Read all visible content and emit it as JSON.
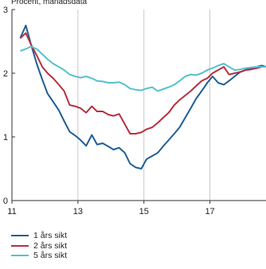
{
  "chart_data": {
    "type": "line",
    "unit_label": "Procent, månadsdata",
    "xlim": [
      11,
      18.7
    ],
    "ylim": [
      0,
      3
    ],
    "x_ticks": [
      11,
      13,
      15,
      17
    ],
    "y_ticks": [
      0,
      1,
      2,
      3
    ],
    "grid": "vertical at x ticks",
    "legend_position": "bottom-left",
    "series": [
      {
        "name": "1 års sikt",
        "color": "#1f5e96",
        "x": [
          11.25,
          11.42,
          11.58,
          11.75,
          11.92,
          12.08,
          12.25,
          12.42,
          12.58,
          12.75,
          12.92,
          13.08,
          13.25,
          13.42,
          13.58,
          13.75,
          13.92,
          14.08,
          14.25,
          14.42,
          14.58,
          14.75,
          14.92,
          15.08,
          15.25,
          15.42,
          15.58,
          15.75,
          15.92,
          16.08,
          16.25,
          16.42,
          16.58,
          16.75,
          16.92,
          17.08,
          17.25,
          17.42,
          17.58,
          17.75,
          17.92,
          18.08,
          18.25,
          18.42,
          18.58,
          18.7
        ],
        "y": [
          2.55,
          2.75,
          2.45,
          2.15,
          1.9,
          1.68,
          1.55,
          1.42,
          1.25,
          1.08,
          1.02,
          0.95,
          0.86,
          1.03,
          0.88,
          0.9,
          0.85,
          0.8,
          0.83,
          0.75,
          0.58,
          0.52,
          0.5,
          0.65,
          0.7,
          0.75,
          0.85,
          0.95,
          1.05,
          1.15,
          1.3,
          1.45,
          1.6,
          1.72,
          1.85,
          1.95,
          1.85,
          1.82,
          1.88,
          1.95,
          2.02,
          2.05,
          2.08,
          2.1,
          2.12,
          2.1
        ]
      },
      {
        "name": "2 års sikt",
        "color": "#b5303f",
        "x": [
          11.25,
          11.42,
          11.58,
          11.75,
          11.92,
          12.08,
          12.25,
          12.42,
          12.58,
          12.75,
          12.92,
          13.08,
          13.25,
          13.42,
          13.58,
          13.75,
          13.92,
          14.08,
          14.25,
          14.42,
          14.58,
          14.75,
          14.92,
          15.08,
          15.25,
          15.42,
          15.58,
          15.75,
          15.92,
          16.08,
          16.25,
          16.42,
          16.58,
          16.75,
          16.92,
          17.08,
          17.25,
          17.42,
          17.58,
          17.75,
          17.92,
          18.08,
          18.25,
          18.42,
          18.58,
          18.7
        ],
        "y": [
          2.55,
          2.63,
          2.45,
          2.28,
          2.1,
          2.0,
          1.92,
          1.82,
          1.72,
          1.5,
          1.48,
          1.45,
          1.38,
          1.48,
          1.4,
          1.4,
          1.35,
          1.33,
          1.36,
          1.2,
          1.05,
          1.05,
          1.07,
          1.12,
          1.15,
          1.22,
          1.3,
          1.38,
          1.5,
          1.58,
          1.65,
          1.72,
          1.8,
          1.88,
          1.92,
          2.0,
          2.05,
          2.1,
          1.98,
          2.0,
          2.02,
          2.05,
          2.06,
          2.08,
          2.1,
          2.1
        ]
      },
      {
        "name": "5 års sikt",
        "color": "#56c0d0",
        "x": [
          11.25,
          11.42,
          11.58,
          11.75,
          11.92,
          12.08,
          12.25,
          12.42,
          12.58,
          12.75,
          12.92,
          13.08,
          13.25,
          13.42,
          13.58,
          13.75,
          13.92,
          14.08,
          14.25,
          14.42,
          14.58,
          14.75,
          14.92,
          15.08,
          15.25,
          15.42,
          15.58,
          15.75,
          15.92,
          16.08,
          16.25,
          16.42,
          16.58,
          16.75,
          16.92,
          17.08,
          17.25,
          17.42,
          17.58,
          17.75,
          17.92,
          18.08,
          18.25,
          18.42,
          18.58,
          18.7
        ],
        "y": [
          2.35,
          2.38,
          2.42,
          2.38,
          2.3,
          2.22,
          2.15,
          2.1,
          2.05,
          1.98,
          1.95,
          1.93,
          1.95,
          1.92,
          1.88,
          1.87,
          1.85,
          1.85,
          1.86,
          1.82,
          1.76,
          1.74,
          1.73,
          1.76,
          1.78,
          1.72,
          1.75,
          1.78,
          1.82,
          1.88,
          1.95,
          1.98,
          1.97,
          2.0,
          2.05,
          2.08,
          2.12,
          2.15,
          2.1,
          2.05,
          2.06,
          2.08,
          2.09,
          2.1,
          2.1,
          2.1
        ]
      }
    ]
  }
}
